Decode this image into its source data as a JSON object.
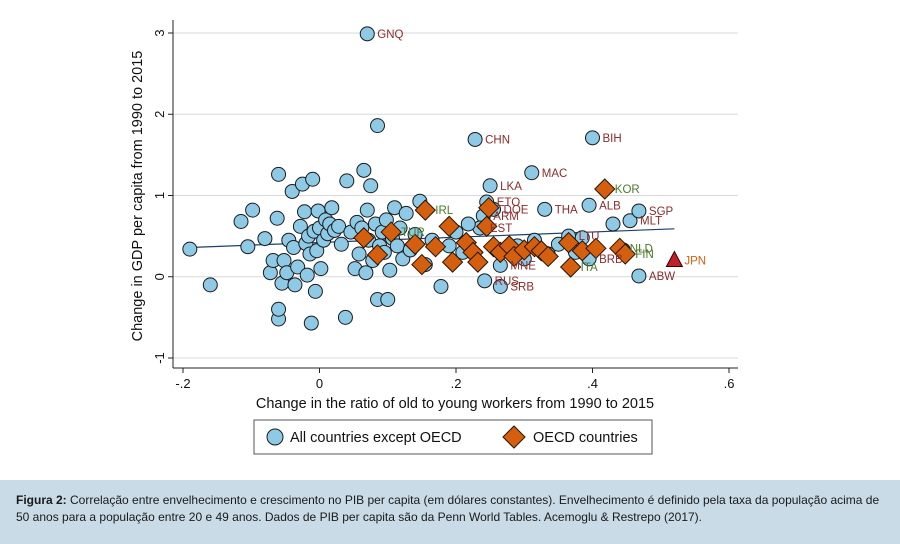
{
  "chart_data": {
    "type": "scatter",
    "xlabel": "Change in the ratio of old to young workers from 1990 to 2015",
    "ylabel": "Change in GDP per capita from 1990 to 2015",
    "xlim": [
      -0.2,
      0.6
    ],
    "ylim": [
      -1,
      3
    ],
    "xticks": [
      -0.2,
      0,
      0.2,
      0.4,
      0.6
    ],
    "xtick_labels": [
      "-.2",
      "0",
      ".2",
      ".4",
      ".6"
    ],
    "yticks": [
      -1,
      0,
      1,
      2,
      3
    ],
    "ytick_labels": [
      "-1",
      "0",
      "1",
      "2",
      "3"
    ],
    "grid": true,
    "legend_position": "bottom",
    "series": [
      {
        "name": "All countries except OECD",
        "marker": "circle",
        "color": "#8ecae6",
        "points": [
          {
            "x": 0.07,
            "y": 2.99,
            "label": "GNQ"
          },
          {
            "x": 0.085,
            "y": 1.86,
            "label": ""
          },
          {
            "x": 0.228,
            "y": 1.69,
            "label": "CHN"
          },
          {
            "x": 0.4,
            "y": 1.71,
            "label": "BIH"
          },
          {
            "x": 0.311,
            "y": 1.28,
            "label": "MAC"
          },
          {
            "x": 0.25,
            "y": 1.12,
            "label": "LKA"
          },
          {
            "x": 0.245,
            "y": 0.92,
            "label": "ETO"
          },
          {
            "x": 0.255,
            "y": 0.83,
            "label": "DOE"
          },
          {
            "x": 0.33,
            "y": 0.83,
            "label": "THA"
          },
          {
            "x": 0.395,
            "y": 0.88,
            "label": "ALB"
          },
          {
            "x": 0.455,
            "y": 0.69,
            "label": "MLT"
          },
          {
            "x": 0.468,
            "y": 0.81,
            "label": "SGP"
          },
          {
            "x": 0.24,
            "y": 0.75,
            "label": "ARM"
          },
          {
            "x": 0.235,
            "y": 0.6,
            "label": "EST"
          },
          {
            "x": 0.365,
            "y": 0.5,
            "label": "LTU"
          },
          {
            "x": 0.395,
            "y": 0.22,
            "label": "BRB"
          },
          {
            "x": 0.468,
            "y": 0.01,
            "label": "ABW"
          },
          {
            "x": 0.242,
            "y": -0.05,
            "label": "RUS"
          },
          {
            "x": 0.265,
            "y": -0.12,
            "label": "SRB"
          },
          {
            "x": 0.265,
            "y": 0.14,
            "label": "MNE"
          },
          {
            "x": -0.19,
            "y": 0.34,
            "label": ""
          },
          {
            "x": -0.16,
            "y": -0.1,
            "label": ""
          },
          {
            "x": -0.115,
            "y": 0.68,
            "label": ""
          },
          {
            "x": -0.105,
            "y": 0.37,
            "label": ""
          },
          {
            "x": -0.098,
            "y": 0.82,
            "label": ""
          },
          {
            "x": -0.08,
            "y": 0.47,
            "label": ""
          },
          {
            "x": -0.072,
            "y": 0.05,
            "label": ""
          },
          {
            "x": -0.068,
            "y": 0.2,
            "label": ""
          },
          {
            "x": -0.062,
            "y": 0.72,
            "label": ""
          },
          {
            "x": -0.06,
            "y": -0.52,
            "label": ""
          },
          {
            "x": -0.06,
            "y": -0.4,
            "label": ""
          },
          {
            "x": -0.06,
            "y": 1.26,
            "label": ""
          },
          {
            "x": -0.055,
            "y": -0.08,
            "label": ""
          },
          {
            "x": -0.052,
            "y": 0.2,
            "label": ""
          },
          {
            "x": -0.048,
            "y": 0.05,
            "label": ""
          },
          {
            "x": -0.045,
            "y": 0.45,
            "label": ""
          },
          {
            "x": -0.04,
            "y": 1.05,
            "label": ""
          },
          {
            "x": -0.038,
            "y": 0.36,
            "label": ""
          },
          {
            "x": -0.036,
            "y": -0.1,
            "label": ""
          },
          {
            "x": -0.032,
            "y": 0.12,
            "label": ""
          },
          {
            "x": -0.028,
            "y": 0.62,
            "label": ""
          },
          {
            "x": -0.025,
            "y": 1.14,
            "label": ""
          },
          {
            "x": -0.022,
            "y": 0.8,
            "label": ""
          },
          {
            "x": -0.02,
            "y": 0.41,
            "label": ""
          },
          {
            "x": -0.018,
            "y": 0.02,
            "label": ""
          },
          {
            "x": -0.016,
            "y": 0.5,
            "label": ""
          },
          {
            "x": -0.014,
            "y": 0.28,
            "label": ""
          },
          {
            "x": -0.012,
            "y": -0.57,
            "label": ""
          },
          {
            "x": -0.01,
            "y": 1.2,
            "label": ""
          },
          {
            "x": -0.008,
            "y": 0.56,
            "label": ""
          },
          {
            "x": -0.006,
            "y": -0.18,
            "label": ""
          },
          {
            "x": -0.004,
            "y": 0.32,
            "label": ""
          },
          {
            "x": -0.002,
            "y": 0.81,
            "label": ""
          },
          {
            "x": 0.0,
            "y": 0.6,
            "label": ""
          },
          {
            "x": 0.002,
            "y": 0.1,
            "label": ""
          },
          {
            "x": 0.006,
            "y": 0.45,
            "label": ""
          },
          {
            "x": 0.009,
            "y": 0.7,
            "label": ""
          },
          {
            "x": 0.012,
            "y": 0.53,
            "label": ""
          },
          {
            "x": 0.015,
            "y": 0.65,
            "label": ""
          },
          {
            "x": 0.018,
            "y": 0.85,
            "label": ""
          },
          {
            "x": 0.022,
            "y": 0.57,
            "label": ""
          },
          {
            "x": 0.028,
            "y": 0.62,
            "label": ""
          },
          {
            "x": 0.032,
            "y": 0.4,
            "label": ""
          },
          {
            "x": 0.038,
            "y": -0.5,
            "label": ""
          },
          {
            "x": 0.04,
            "y": 1.18,
            "label": ""
          },
          {
            "x": 0.046,
            "y": 0.55,
            "label": ""
          },
          {
            "x": 0.052,
            "y": 0.1,
            "label": ""
          },
          {
            "x": 0.055,
            "y": 0.67,
            "label": ""
          },
          {
            "x": 0.058,
            "y": 0.28,
            "label": ""
          },
          {
            "x": 0.062,
            "y": 0.6,
            "label": ""
          },
          {
            "x": 0.065,
            "y": 1.31,
            "label": ""
          },
          {
            "x": 0.068,
            "y": 0.05,
            "label": ""
          },
          {
            "x": 0.07,
            "y": 0.82,
            "label": ""
          },
          {
            "x": 0.072,
            "y": 0.45,
            "label": ""
          },
          {
            "x": 0.075,
            "y": 1.12,
            "label": ""
          },
          {
            "x": 0.078,
            "y": 0.2,
            "label": ""
          },
          {
            "x": 0.082,
            "y": 0.65,
            "label": ""
          },
          {
            "x": 0.085,
            "y": -0.28,
            "label": ""
          },
          {
            "x": 0.088,
            "y": 0.38,
            "label": ""
          },
          {
            "x": 0.092,
            "y": 0.55,
            "label": ""
          },
          {
            "x": 0.095,
            "y": 0.3,
            "label": ""
          },
          {
            "x": 0.098,
            "y": 0.7,
            "label": ""
          },
          {
            "x": 0.1,
            "y": -0.28,
            "label": ""
          },
          {
            "x": 0.103,
            "y": 0.08,
            "label": ""
          },
          {
            "x": 0.107,
            "y": 0.47,
            "label": ""
          },
          {
            "x": 0.11,
            "y": 0.85,
            "label": ""
          },
          {
            "x": 0.114,
            "y": 0.38,
            "label": ""
          },
          {
            "x": 0.118,
            "y": 0.6,
            "label": ""
          },
          {
            "x": 0.122,
            "y": 0.22,
            "label": ""
          },
          {
            "x": 0.127,
            "y": 0.78,
            "label": ""
          },
          {
            "x": 0.133,
            "y": 0.33,
            "label": ""
          },
          {
            "x": 0.14,
            "y": 0.52,
            "label": ""
          },
          {
            "x": 0.147,
            "y": 0.93,
            "label": ""
          },
          {
            "x": 0.155,
            "y": 0.15,
            "label": ""
          },
          {
            "x": 0.165,
            "y": 0.45,
            "label": ""
          },
          {
            "x": 0.178,
            "y": -0.12,
            "label": ""
          },
          {
            "x": 0.19,
            "y": 0.38,
            "label": ""
          },
          {
            "x": 0.2,
            "y": 0.55,
            "label": ""
          },
          {
            "x": 0.21,
            "y": 0.3,
            "label": ""
          },
          {
            "x": 0.218,
            "y": 0.65,
            "label": ""
          },
          {
            "x": 0.29,
            "y": 0.38,
            "label": ""
          },
          {
            "x": 0.3,
            "y": 0.22,
            "label": ""
          },
          {
            "x": 0.315,
            "y": 0.45,
            "label": ""
          },
          {
            "x": 0.335,
            "y": 0.28,
            "label": ""
          },
          {
            "x": 0.35,
            "y": 0.4,
            "label": ""
          },
          {
            "x": 0.375,
            "y": 0.3,
            "label": ""
          },
          {
            "x": 0.385,
            "y": 0.48,
            "label": ""
          },
          {
            "x": 0.43,
            "y": 0.65,
            "label": ""
          },
          {
            "x": 0.445,
            "y": 0.33,
            "label": ""
          }
        ]
      },
      {
        "name": "OECD countries",
        "marker": "diamond",
        "color": "#d4600f",
        "points": [
          {
            "x": 0.418,
            "y": 1.08,
            "label": "KOR"
          },
          {
            "x": 0.155,
            "y": 0.82,
            "label": "IRL"
          },
          {
            "x": 0.248,
            "y": 0.85,
            "label": ""
          },
          {
            "x": 0.065,
            "y": 0.48,
            "label": ""
          },
          {
            "x": 0.085,
            "y": 0.27,
            "label": ""
          },
          {
            "x": 0.105,
            "y": 0.55,
            "label": "TUR"
          },
          {
            "x": 0.14,
            "y": 0.4,
            "label": ""
          },
          {
            "x": 0.15,
            "y": 0.15,
            "label": ""
          },
          {
            "x": 0.17,
            "y": 0.37,
            "label": ""
          },
          {
            "x": 0.19,
            "y": 0.62,
            "label": ""
          },
          {
            "x": 0.195,
            "y": 0.18,
            "label": ""
          },
          {
            "x": 0.215,
            "y": 0.42,
            "label": ""
          },
          {
            "x": 0.225,
            "y": 0.3,
            "label": ""
          },
          {
            "x": 0.232,
            "y": 0.18,
            "label": ""
          },
          {
            "x": 0.245,
            "y": 0.62,
            "label": ""
          },
          {
            "x": 0.255,
            "y": 0.37,
            "label": ""
          },
          {
            "x": 0.265,
            "y": 0.3,
            "label": ""
          },
          {
            "x": 0.278,
            "y": 0.38,
            "label": ""
          },
          {
            "x": 0.285,
            "y": 0.25,
            "label": ""
          },
          {
            "x": 0.3,
            "y": 0.33,
            "label": ""
          },
          {
            "x": 0.315,
            "y": 0.37,
            "label": ""
          },
          {
            "x": 0.325,
            "y": 0.32,
            "label": ""
          },
          {
            "x": 0.335,
            "y": 0.25,
            "label": ""
          },
          {
            "x": 0.365,
            "y": 0.42,
            "label": ""
          },
          {
            "x": 0.368,
            "y": 0.12,
            "label": "ITA"
          },
          {
            "x": 0.385,
            "y": 0.32,
            "label": ""
          },
          {
            "x": 0.405,
            "y": 0.35,
            "label": ""
          },
          {
            "x": 0.44,
            "y": 0.35,
            "label": "NLD"
          },
          {
            "x": 0.448,
            "y": 0.28,
            "label": "FIN"
          }
        ]
      },
      {
        "name": "JPN",
        "marker": "triangle",
        "color": "#c0202a",
        "points": [
          {
            "x": 0.52,
            "y": 0.2,
            "label": "JPN"
          }
        ]
      }
    ],
    "fit_line": {
      "x": [
        -0.19,
        0.52
      ],
      "y": [
        0.36,
        0.59
      ]
    },
    "legend": [
      {
        "label": "All countries except OECD",
        "marker": "circle"
      },
      {
        "label": "OECD countries",
        "marker": "diamond"
      }
    ]
  },
  "caption": {
    "lead": "Figura 2:",
    "text": " Correlação entre envelhecimento e crescimento no PIB per capita (em dólares constantes). Envelhecimento é definido pela taxa da população acima de 50 anos para a população entre 20 e 49 anos. Dados de PIB per capita são da Penn World Tables. Acemoglu & Restrepo (2017)."
  }
}
